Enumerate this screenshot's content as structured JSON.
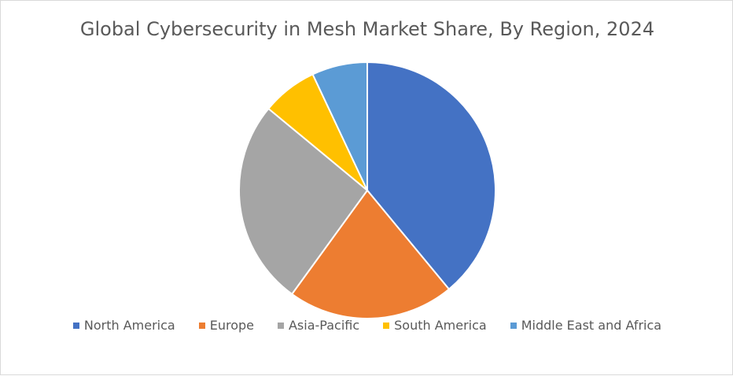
{
  "chart_data": {
    "type": "pie",
    "title": "Global Cybersecurity in Mesh Market Share, By Region, 2024",
    "categories": [
      "North America",
      "Europe",
      "Asia-Pacific",
      "South America",
      "Middle East and Africa"
    ],
    "values": [
      39,
      21,
      26,
      7,
      7
    ],
    "colors": [
      "#4472c4",
      "#ed7d31",
      "#a5a5a5",
      "#ffc000",
      "#5b9bd5"
    ],
    "legend_position": "bottom",
    "start_angle_deg": 0,
    "direction": "clockwise"
  }
}
